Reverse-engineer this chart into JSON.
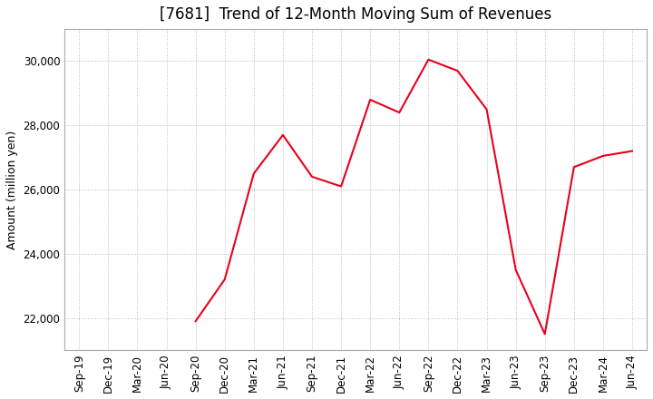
{
  "title": "[7681]  Trend of 12-Month Moving Sum of Revenues",
  "ylabel": "Amount (million yen)",
  "line_color": "#e8001c",
  "background_color": "#ffffff",
  "grid_color": "#bbbbbb",
  "x_labels": [
    "Sep-19",
    "Dec-19",
    "Mar-20",
    "Jun-20",
    "Sep-20",
    "Dec-20",
    "Mar-21",
    "Jun-21",
    "Sep-21",
    "Dec-21",
    "Mar-22",
    "Jun-22",
    "Sep-22",
    "Dec-22",
    "Mar-23",
    "Jun-23",
    "Sep-23",
    "Dec-23",
    "Mar-24",
    "Jun-24"
  ],
  "data_points": [
    [
      "Sep-19",
      null
    ],
    [
      "Dec-19",
      null
    ],
    [
      "Mar-20",
      null
    ],
    [
      "Jun-20",
      null
    ],
    [
      "Sep-20",
      21900
    ],
    [
      "Dec-20",
      23200
    ],
    [
      "Mar-21",
      26500
    ],
    [
      "Jun-21",
      27700
    ],
    [
      "Sep-21",
      26400
    ],
    [
      "Dec-21",
      26100
    ],
    [
      "Mar-22",
      28800
    ],
    [
      "Jun-22",
      28400
    ],
    [
      "Sep-22",
      30050
    ],
    [
      "Dec-22",
      29700
    ],
    [
      "Mar-23",
      28500
    ],
    [
      "Jun-23",
      23500
    ],
    [
      "Sep-23",
      21500
    ],
    [
      "Dec-23",
      26700
    ],
    [
      "Mar-24",
      27050
    ],
    [
      "Jun-24",
      27200
    ]
  ],
  "ylim": [
    21000,
    31000
  ],
  "yticks": [
    22000,
    24000,
    26000,
    28000,
    30000
  ],
  "title_fontsize": 12,
  "label_fontsize": 9,
  "tick_fontsize": 8.5
}
